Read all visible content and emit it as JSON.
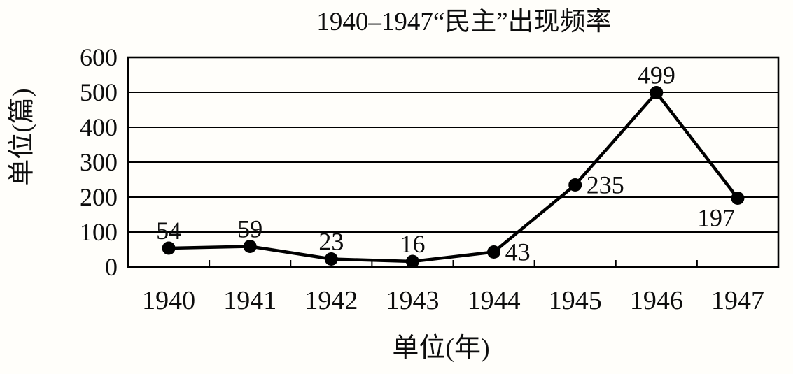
{
  "chart_data": {
    "type": "line",
    "title": "1940–1947“民主”出现频率",
    "xlabel": "单位(年)",
    "ylabel": "单位(篇)",
    "categories": [
      "1940",
      "1941",
      "1942",
      "1943",
      "1944",
      "1945",
      "1946",
      "1947"
    ],
    "values": [
      54,
      59,
      23,
      16,
      43,
      235,
      499,
      197
    ],
    "point_labels": [
      "54",
      "59",
      "23",
      "16",
      "43",
      "235",
      "499",
      "197"
    ],
    "label_positions": [
      "above",
      "above",
      "above",
      "above",
      "right",
      "right",
      "above",
      "below-left"
    ],
    "ylim": [
      0,
      600
    ],
    "yticks": [
      0,
      100,
      200,
      300,
      400,
      500,
      600
    ],
    "grid": "horizontal",
    "legend": false,
    "colors": {
      "line": "#000000",
      "marker": "#000000",
      "text": "#0d0d0d",
      "border": "#000000",
      "background": "#fffefa"
    }
  }
}
